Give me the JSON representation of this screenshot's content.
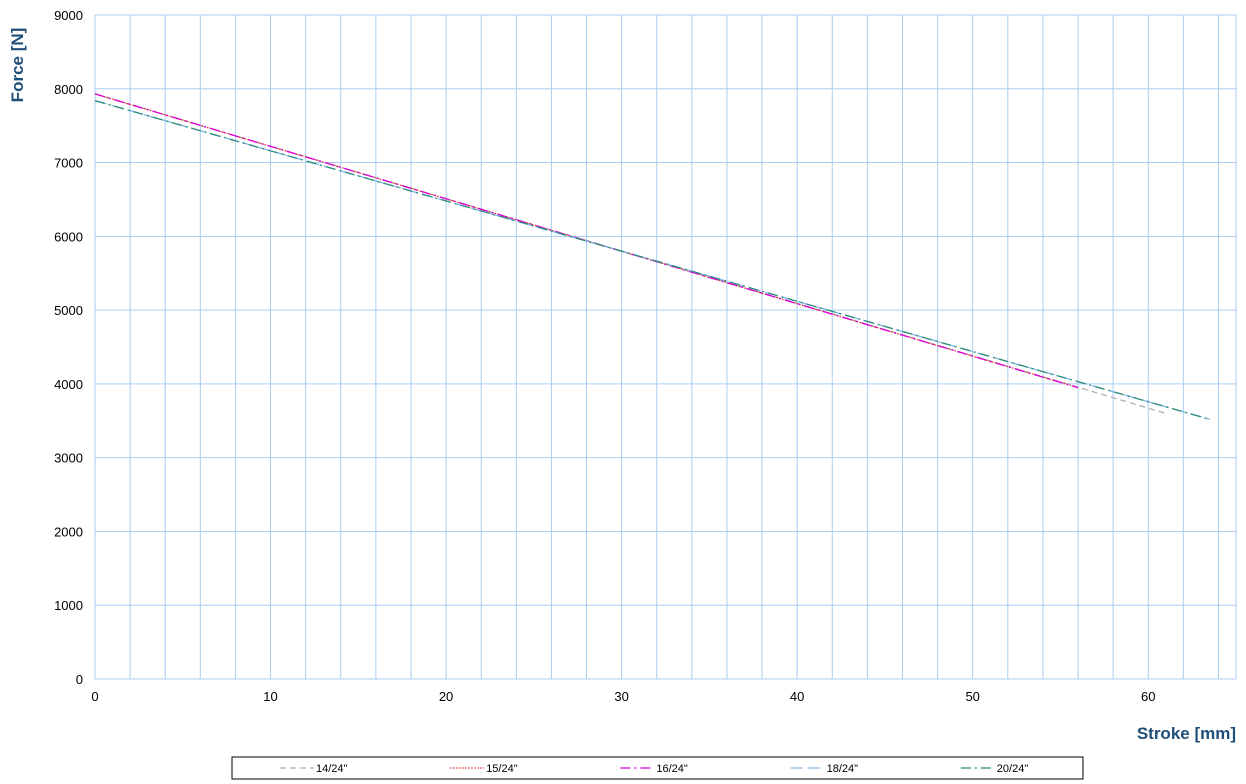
{
  "chart_data": {
    "type": "line",
    "title": "",
    "xlabel": "Stroke [mm]",
    "ylabel": "Force [N]",
    "xlim": [
      0,
      65
    ],
    "ylim": [
      0,
      9000
    ],
    "x_ticks": [
      "0",
      "10",
      "20",
      "30",
      "40",
      "50",
      "60"
    ],
    "y_ticks": [
      "0",
      "1000",
      "2000",
      "3000",
      "4000",
      "5000",
      "6000",
      "7000",
      "8000",
      "9000"
    ],
    "grid": true,
    "legend_position": "bottom",
    "series": [
      {
        "name": "14/24\"",
        "color": "#b0b0b0",
        "dash": "dash",
        "x": [
          0,
          61
        ],
        "y": [
          7930,
          3600
        ]
      },
      {
        "name": "15/24\"",
        "color": "#e03030",
        "dash": "dot",
        "x": [
          0,
          56
        ],
        "y": [
          7930,
          3950
        ]
      },
      {
        "name": "16/24\"",
        "color": "#dd00dd",
        "dash": "dashdot",
        "x": [
          0,
          56
        ],
        "y": [
          7930,
          3950
        ]
      },
      {
        "name": "18/24\"",
        "color": "#7fb7e8",
        "dash": "longdash",
        "x": [
          0,
          63.5
        ],
        "y": [
          7840,
          3520
        ]
      },
      {
        "name": "20/24\"",
        "color": "#2e8b7a",
        "dash": "dashdot",
        "x": [
          0,
          63.5
        ],
        "y": [
          7840,
          3520
        ]
      }
    ]
  },
  "colors": {
    "grid": "#a9cdf0",
    "axis_title": "#1f4e79"
  }
}
